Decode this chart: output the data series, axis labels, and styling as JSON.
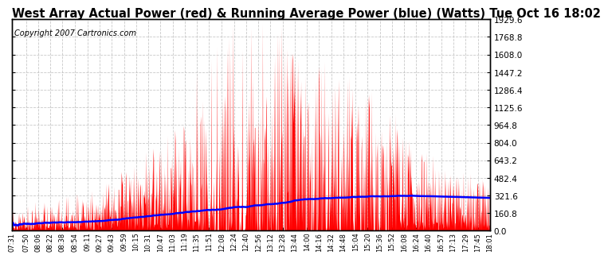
{
  "title": "West Array Actual Power (red) & Running Average Power (blue) (Watts) Tue Oct 16 18:02",
  "copyright": "Copyright 2007 Cartronics.com",
  "ymin": 0.0,
  "ymax": 1929.6,
  "yticks": [
    0.0,
    160.8,
    321.6,
    482.4,
    643.2,
    804.0,
    964.8,
    1125.6,
    1286.4,
    1447.2,
    1608.0,
    1768.8,
    1929.6
  ],
  "bg_color": "#ffffff",
  "plot_bg_color": "#ffffff",
  "grid_color": "#bbbbbb",
  "actual_color": "#ff0000",
  "avg_color": "#0000ff",
  "title_fontsize": 10.5,
  "copyright_fontsize": 7,
  "xtick_labels": [
    "07:31",
    "07:50",
    "08:06",
    "08:22",
    "08:38",
    "08:54",
    "09:11",
    "09:27",
    "09:43",
    "09:59",
    "10:15",
    "10:31",
    "10:47",
    "11:03",
    "11:19",
    "11:35",
    "11:51",
    "12:08",
    "12:24",
    "12:40",
    "12:56",
    "13:12",
    "13:28",
    "13:44",
    "14:00",
    "14:16",
    "14:32",
    "14:48",
    "15:04",
    "15:20",
    "15:36",
    "15:52",
    "16:08",
    "16:24",
    "16:40",
    "16:57",
    "17:13",
    "17:29",
    "17:45",
    "18:01"
  ]
}
